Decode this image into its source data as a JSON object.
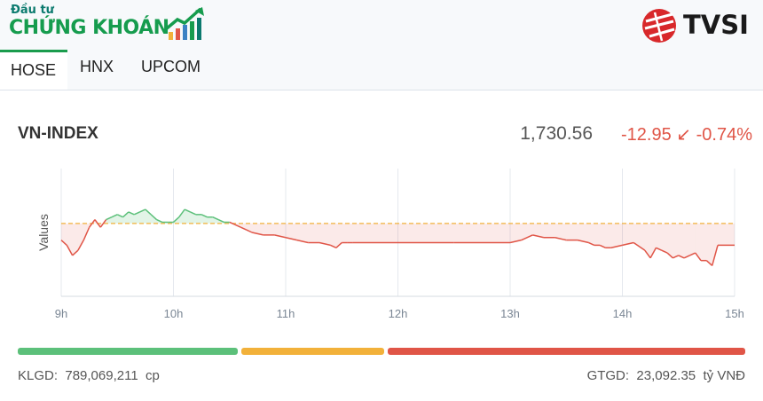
{
  "brand": {
    "logo_small": "Đầu tư",
    "logo_big": "CHỨNG KHOÁN",
    "partner_name": "TVSI"
  },
  "tabs": [
    {
      "label": "HOSE",
      "active": true
    },
    {
      "label": "HNX",
      "active": false
    },
    {
      "label": "UPCOM",
      "active": false
    }
  ],
  "index": {
    "name": "VN-INDEX",
    "value": "1,730.56",
    "change": "-12.95",
    "change_arrow": "↙",
    "change_pct": "-0.74%",
    "trend": "down"
  },
  "chart_data": {
    "type": "line",
    "ylabel": "Values",
    "x_ticks": [
      "9h",
      "10h",
      "11h",
      "12h",
      "13h",
      "14h",
      "15h"
    ],
    "reference": 1743.51,
    "reference_style": "dashed",
    "ylim": [
      1715,
      1765
    ],
    "grid": "vertical",
    "series": [
      {
        "x": [
          9.0,
          9.05,
          9.1,
          9.15,
          9.2,
          9.25,
          9.3,
          9.35,
          9.4,
          9.45,
          9.5,
          9.55,
          9.6,
          9.65,
          9.7,
          9.75,
          9.8,
          9.85,
          9.9,
          9.95,
          10.0,
          10.05,
          10.1,
          10.15,
          10.2,
          10.25,
          10.3,
          10.35,
          10.4,
          10.45,
          10.5,
          10.55,
          10.6,
          10.65,
          10.7,
          10.8,
          10.9,
          11.0,
          11.1,
          11.2,
          11.3,
          11.4,
          11.45,
          11.5,
          11.55,
          11.6,
          12.0,
          12.5,
          13.0,
          13.1,
          13.2,
          13.3,
          13.4,
          13.5,
          13.6,
          13.7,
          13.75,
          13.8,
          13.85,
          13.9,
          14.0,
          14.1,
          14.2,
          14.25,
          14.3,
          14.35,
          14.4,
          14.45,
          14.5,
          14.55,
          14.6,
          14.65,
          14.7,
          14.75,
          14.8,
          14.85
        ],
        "values": [
          1737,
          1735,
          1731,
          1733,
          1737,
          1742,
          1745,
          1742,
          1745,
          1746,
          1747,
          1746,
          1748,
          1747,
          1748,
          1749,
          1747,
          1745,
          1744,
          1744,
          1744,
          1746,
          1749,
          1748,
          1747,
          1747,
          1746,
          1746,
          1745,
          1744,
          1744,
          1743,
          1742,
          1741,
          1740,
          1739,
          1739,
          1738,
          1737,
          1736,
          1736,
          1735,
          1734,
          1736,
          1736,
          1736,
          1736,
          1736,
          1736,
          1737,
          1739,
          1738,
          1738,
          1737,
          1737,
          1736,
          1735,
          1735,
          1734,
          1734,
          1735,
          1736,
          1733,
          1730,
          1734,
          1733,
          1732,
          1730,
          1731,
          1730,
          1731,
          1732,
          1729,
          1729,
          1727,
          1735
        ]
      },
      {
        "x": [
          14.85,
          15.0
        ],
        "values": [
          1735,
          1735
        ]
      }
    ]
  },
  "breadth": [
    {
      "status": "advancing",
      "color": "#5cc07a",
      "share": 0.306
    },
    {
      "status": "unchanged",
      "color": "#f2b13a",
      "share": 0.198
    },
    {
      "status": "declining",
      "color": "#e05547",
      "share": 0.496
    }
  ],
  "stats": {
    "volume_label": "KLGD:",
    "volume_value": "789,069,211",
    "volume_unit": "cp",
    "value_label": "GTGD:",
    "value_value": "23,092.35",
    "value_unit": "tỷ VNĐ"
  },
  "colors": {
    "up": "#5cc07a",
    "down": "#e05547",
    "reference_line": "#f2b13a",
    "brand_green": "#169c4e",
    "tvsi_red": "#d8282a"
  }
}
